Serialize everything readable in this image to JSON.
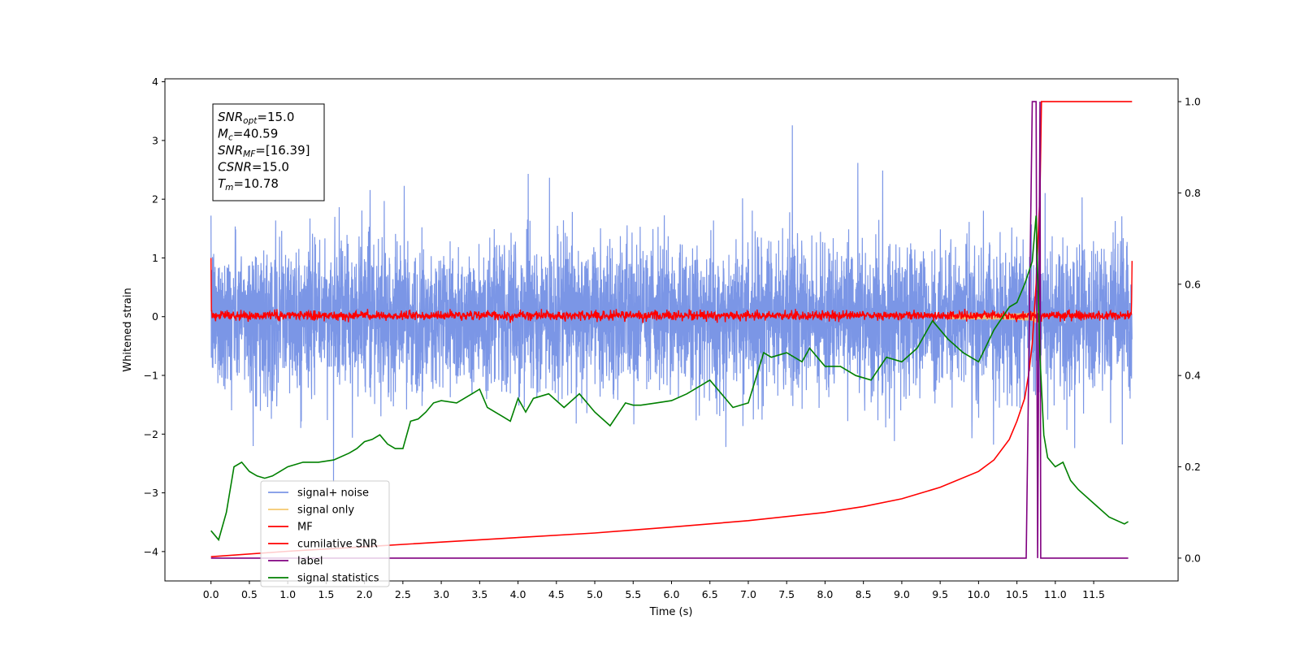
{
  "chart_data": {
    "type": "line",
    "xlabel": "Time (s)",
    "ylabel": "Whitened strain",
    "xlim": [
      -0.6,
      12.6
    ],
    "ylim_left": [
      -4.5,
      4.05
    ],
    "ylim_right": [
      -0.05,
      1.05
    ],
    "x_ticks": [
      0.0,
      0.5,
      1.0,
      1.5,
      2.0,
      2.5,
      3.0,
      3.5,
      4.0,
      4.5,
      5.0,
      5.5,
      6.0,
      6.5,
      7.0,
      7.5,
      8.0,
      8.5,
      9.0,
      9.5,
      10.0,
      10.5,
      11.0,
      11.5
    ],
    "x_tick_labels": [
      "0.0",
      "0.5",
      "1.0",
      "1.5",
      "2.0",
      "2.5",
      "3.0",
      "3.5",
      "4.0",
      "4.5",
      "5.0",
      "5.5",
      "6.0",
      "6.5",
      "7.0",
      "7.5",
      "8.0",
      "8.5",
      "9.0",
      "9.5",
      "10.0",
      "10.5",
      "11.0",
      "11.5"
    ],
    "y_ticks_left": [
      4,
      3,
      2,
      1,
      0,
      -1,
      -2,
      -3,
      -4
    ],
    "y_tick_labels_left": [
      "4",
      "3",
      "2",
      "1",
      "0",
      "−1",
      "−2",
      "−3",
      "−4"
    ],
    "y_ticks_right": [
      1.0,
      0.8,
      0.6,
      0.4,
      0.2,
      0.0
    ],
    "y_tick_labels_right": [
      "1.0",
      "0.8",
      "0.6",
      "0.4",
      "0.2",
      "0.0"
    ],
    "legend_position": "lower-left",
    "info_box": {
      "lines": [
        {
          "name": "SNR",
          "sub": "opt",
          "value": "=15.0"
        },
        {
          "name": "M",
          "sub": "c",
          "value": "=40.59"
        },
        {
          "name": "SNR",
          "sub": "MF",
          "value": "=[16.39]"
        },
        {
          "name": "CSNR",
          "sub": "",
          "value": "=15.0"
        },
        {
          "name": "T",
          "sub": "m",
          "value": "=10.78"
        }
      ]
    },
    "series": [
      {
        "name": "signal+ noise",
        "color": "#7b96e6",
        "axis": "left",
        "noise_std": 0.62,
        "x_range": [
          0.0,
          12.0
        ]
      },
      {
        "name": "signal only",
        "color": "#f5c86e",
        "axis": "left",
        "merger_time": 10.78
      },
      {
        "name": "MF",
        "color": "#ff0000",
        "axis": "left",
        "noise_std": 0.04,
        "x_range": [
          0.0,
          12.0
        ]
      },
      {
        "name": "cumilative SNR",
        "color": "#ff0000",
        "axis": "right",
        "x": [
          0.0,
          1.0,
          2.0,
          3.0,
          4.0,
          5.0,
          6.0,
          7.0,
          8.0,
          8.5,
          9.0,
          9.5,
          10.0,
          10.2,
          10.4,
          10.5,
          10.6,
          10.65,
          10.7,
          10.75,
          10.8,
          10.82,
          12.0
        ],
        "y": [
          0.003,
          0.015,
          0.025,
          0.035,
          0.045,
          0.055,
          0.068,
          0.082,
          0.1,
          0.113,
          0.13,
          0.155,
          0.19,
          0.215,
          0.26,
          0.3,
          0.35,
          0.4,
          0.47,
          0.6,
          0.8,
          1.0,
          1.0
        ]
      },
      {
        "name": "label",
        "color": "#800080",
        "axis": "right",
        "x": [
          0.0,
          10.62,
          10.7,
          10.75,
          10.77,
          10.8,
          10.81,
          11.95
        ],
        "y": [
          0.0,
          0.0,
          1.0,
          1.0,
          0.0,
          1.0,
          0.0,
          0.0
        ]
      },
      {
        "name": "signal statistics",
        "color": "#008000",
        "axis": "right",
        "x": [
          0.0,
          0.1,
          0.2,
          0.3,
          0.4,
          0.5,
          0.6,
          0.7,
          0.8,
          0.9,
          1.0,
          1.2,
          1.4,
          1.6,
          1.8,
          1.9,
          2.0,
          2.1,
          2.2,
          2.3,
          2.4,
          2.5,
          2.6,
          2.7,
          2.8,
          2.9,
          3.0,
          3.2,
          3.4,
          3.5,
          3.6,
          3.8,
          3.9,
          4.0,
          4.1,
          4.2,
          4.4,
          4.6,
          4.8,
          5.0,
          5.2,
          5.4,
          5.5,
          5.6,
          5.8,
          6.0,
          6.2,
          6.4,
          6.5,
          6.6,
          6.8,
          7.0,
          7.2,
          7.3,
          7.5,
          7.7,
          7.8,
          8.0,
          8.2,
          8.4,
          8.6,
          8.8,
          9.0,
          9.2,
          9.4,
          9.6,
          9.8,
          10.0,
          10.2,
          10.4,
          10.5,
          10.6,
          10.7,
          10.75,
          10.8,
          10.85,
          10.9,
          11.0,
          11.1,
          11.2,
          11.3,
          11.5,
          11.7,
          11.9,
          11.95
        ],
        "y": [
          0.06,
          0.04,
          0.1,
          0.2,
          0.21,
          0.19,
          0.18,
          0.175,
          0.18,
          0.19,
          0.2,
          0.21,
          0.21,
          0.215,
          0.23,
          0.24,
          0.255,
          0.26,
          0.27,
          0.25,
          0.24,
          0.24,
          0.3,
          0.305,
          0.32,
          0.34,
          0.345,
          0.34,
          0.36,
          0.37,
          0.33,
          0.31,
          0.3,
          0.35,
          0.32,
          0.35,
          0.36,
          0.33,
          0.36,
          0.32,
          0.29,
          0.34,
          0.335,
          0.335,
          0.34,
          0.345,
          0.36,
          0.38,
          0.39,
          0.37,
          0.33,
          0.34,
          0.45,
          0.44,
          0.45,
          0.43,
          0.46,
          0.42,
          0.42,
          0.4,
          0.39,
          0.44,
          0.43,
          0.46,
          0.52,
          0.48,
          0.45,
          0.43,
          0.5,
          0.55,
          0.56,
          0.6,
          0.65,
          0.75,
          0.44,
          0.27,
          0.22,
          0.2,
          0.21,
          0.17,
          0.15,
          0.12,
          0.09,
          0.075,
          0.08
        ]
      }
    ]
  }
}
